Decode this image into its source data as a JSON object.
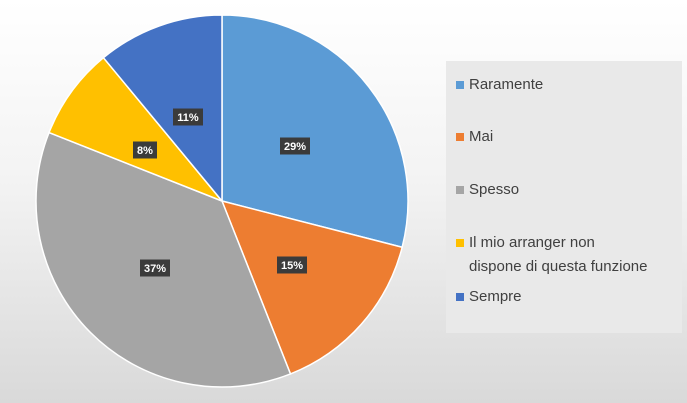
{
  "chart_data": {
    "type": "pie",
    "title": "",
    "categories": [
      "Raramente",
      "Mai",
      "Spesso",
      "Il mio arranger non dispone di questa funzione",
      "Sempre"
    ],
    "values": [
      29,
      15,
      37,
      8,
      11
    ],
    "labels": [
      "29%",
      "15%",
      "37%",
      "8%",
      "11%"
    ],
    "colors": [
      "#5b9bd5",
      "#ed7d31",
      "#a5a5a5",
      "#ffc000",
      "#4472c4"
    ],
    "legend_position": "right",
    "legend": [
      {
        "label": "Raramente",
        "color": "#5b9bd5"
      },
      {
        "label": "Mai",
        "color": "#ed7d31"
      },
      {
        "label": "Spesso",
        "color": "#a5a5a5"
      },
      {
        "label_lines": [
          "Il mio arranger non",
          "dispone di questa funzione"
        ],
        "color": "#ffc000"
      },
      {
        "label": "Sempre",
        "color": "#4472c4"
      }
    ]
  }
}
